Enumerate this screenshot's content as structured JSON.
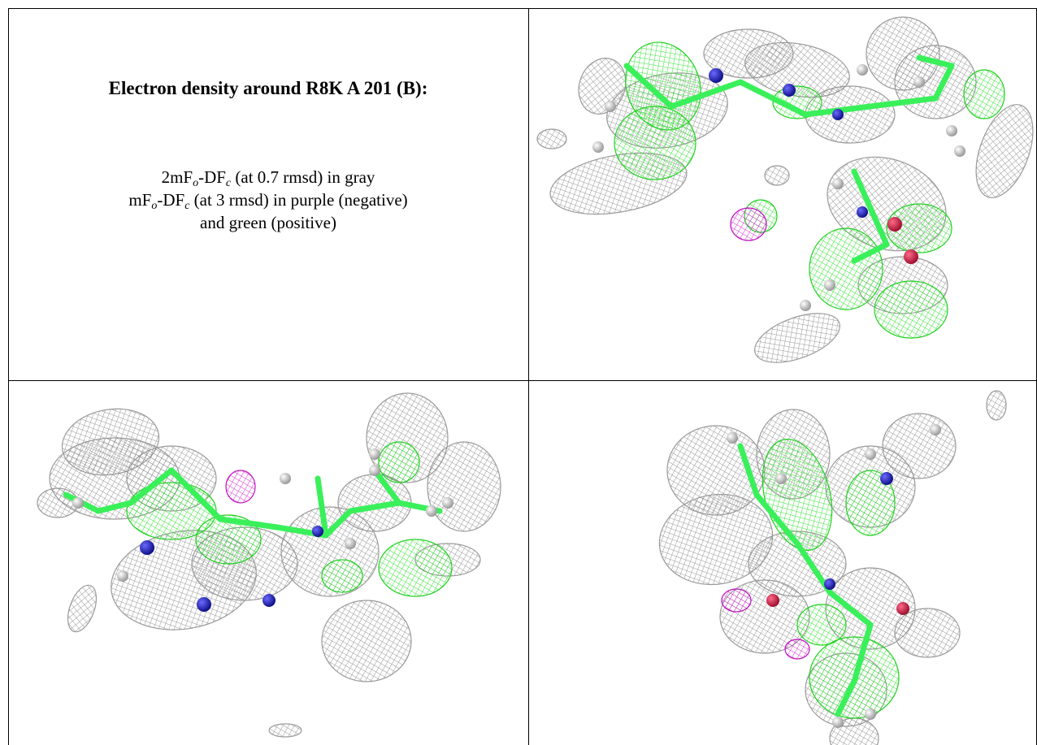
{
  "title": "Electron density around R8K A 201 (B):",
  "legend": [
    [
      "2mF",
      "o",
      "-DF",
      "c",
      " (at 0.7 rmsd) in gray"
    ],
    [
      "mF",
      "o",
      "-DF",
      "c",
      " (at 3 rmsd) in purple (negative)"
    ],
    [
      "and green (positive)"
    ]
  ]
}
